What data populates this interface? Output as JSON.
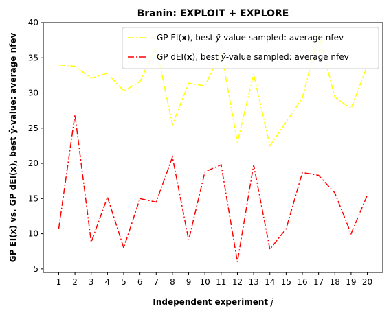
{
  "chart_data": {
    "type": "line",
    "title": "Branin: EXPLOIT + EXPLORE",
    "xlabel_prefix": "Independent experiment ",
    "xlabel_var": "j",
    "ylabel": "GP EI(x) vs. GP dEI(x), best ŷ-value: average nfev",
    "x": [
      1,
      2,
      3,
      4,
      5,
      6,
      7,
      8,
      9,
      10,
      11,
      12,
      13,
      14,
      15,
      16,
      17,
      18,
      19,
      20
    ],
    "ylim": [
      4.5,
      40
    ],
    "yticks": [
      5,
      10,
      15,
      20,
      25,
      30,
      35,
      40
    ],
    "legend_position": "upper-right",
    "series": [
      {
        "name": "GP EI(x), best ŷ-value sampled: average nfev",
        "legend_parts": [
          "GP EI(",
          "x",
          "), best ",
          "ŷ",
          "-value sampled: average nfev"
        ],
        "color": "#ffff00",
        "values": [
          34.0,
          33.8,
          32.1,
          32.8,
          30.3,
          31.6,
          36.6,
          25.5,
          31.4,
          31.0,
          35.9,
          23.0,
          32.7,
          22.5,
          25.9,
          29.3,
          38.3,
          29.4,
          27.8,
          33.9
        ]
      },
      {
        "name": "GP dEI(x), best ŷ-value sampled: average nfev",
        "legend_parts": [
          "GP dEI(",
          "x",
          "), best ",
          "ŷ",
          "-value sampled: average nfev"
        ],
        "color": "#ff0000",
        "values": [
          10.7,
          26.9,
          8.8,
          15.2,
          8.0,
          15.0,
          14.5,
          20.9,
          9.1,
          18.8,
          19.8,
          6.0,
          19.8,
          7.8,
          10.7,
          18.7,
          18.3,
          15.8,
          10.0,
          15.5
        ]
      }
    ]
  }
}
